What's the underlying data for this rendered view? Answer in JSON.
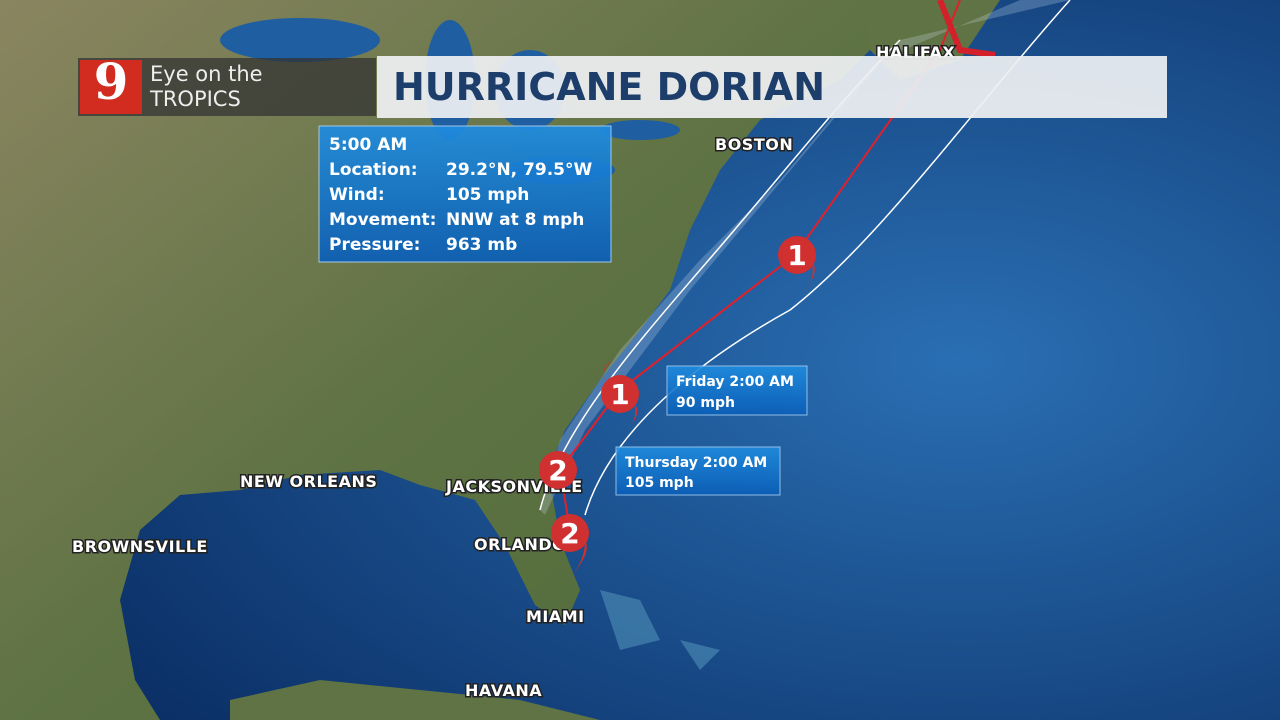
{
  "logo": {
    "number": "9",
    "line1": "Eye on the",
    "line2": "TROPICS"
  },
  "title": "HURRICANE DORIAN",
  "info": {
    "time": "5:00 AM",
    "rows": [
      [
        "Location:",
        "29.2°N, 79.5°W"
      ],
      [
        "Wind:",
        "105 mph"
      ],
      [
        "Movement:",
        "NNW at 8 mph"
      ],
      [
        "Pressure:",
        "963 mb"
      ]
    ]
  },
  "cities": [
    "HALIFAX",
    "BOSTON",
    "NEW ORLEANS",
    "JACKSONVILLE",
    "BROWNSVILLE",
    "ORLANDO",
    "MIAMI",
    "HAVANA"
  ],
  "forecasts": [
    {
      "time": "Friday 2:00 AM",
      "wind": "90 mph"
    },
    {
      "time": "Thursday 2:00 AM",
      "wind": "105 mph"
    }
  ],
  "storm_markers": [
    "1",
    "1",
    "2",
    "2"
  ]
}
